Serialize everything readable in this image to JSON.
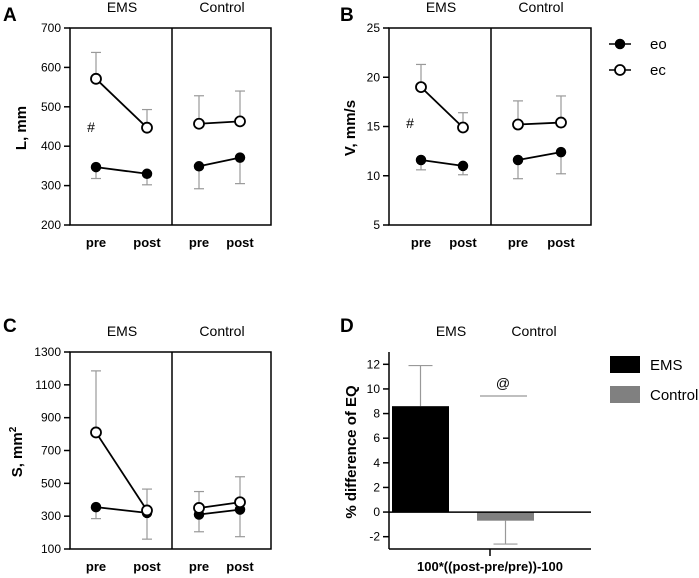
{
  "figure": {
    "colors": {
      "axis": "#000000",
      "error": "#999999",
      "open_fill": "#ffffff",
      "ems_bar": "#000000",
      "control_bar": "#808080"
    },
    "legend_ab": {
      "items": [
        {
          "label": "eo",
          "marker": "filled-circle"
        },
        {
          "label": "ec",
          "marker": "open-circle"
        }
      ]
    },
    "legend_d": {
      "items": [
        {
          "label": "EMS",
          "color": "#000000"
        },
        {
          "label": "Control",
          "color": "#808080"
        }
      ]
    }
  },
  "chart_data": [
    {
      "panel": "A",
      "type": "line",
      "ylabel": "L, mm",
      "ylim": [
        200,
        700
      ],
      "yticks": [
        200,
        300,
        400,
        500,
        600,
        700
      ],
      "groups": [
        "EMS",
        "Control"
      ],
      "categories": [
        "pre",
        "post"
      ],
      "series": [
        {
          "name": "eo",
          "marker": "filled",
          "EMS": {
            "values": [
              347,
              330
            ],
            "err_low": [
              318,
              302
            ],
            "err_high": [
              null,
              null
            ]
          },
          "Control": {
            "values": [
              349,
              371
            ],
            "err_low": [
              292,
              305
            ],
            "err_high": [
              null,
              null
            ]
          }
        },
        {
          "name": "ec",
          "marker": "open",
          "EMS": {
            "values": [
              571,
              447
            ],
            "err_low": [
              null,
              null
            ],
            "err_high": [
              638,
              493
            ]
          },
          "Control": {
            "values": [
              457,
              463
            ],
            "err_low": [
              null,
              null
            ],
            "err_high": [
              528,
              540
            ]
          }
        }
      ],
      "annotation": "#"
    },
    {
      "panel": "B",
      "type": "line",
      "ylabel": "V, mm/s",
      "ylim": [
        5,
        25
      ],
      "yticks": [
        5,
        10,
        15,
        20,
        25
      ],
      "groups": [
        "EMS",
        "Control"
      ],
      "categories": [
        "pre",
        "post"
      ],
      "series": [
        {
          "name": "eo",
          "marker": "filled",
          "EMS": {
            "values": [
              11.6,
              11.0
            ],
            "err_low": [
              10.6,
              10.1
            ],
            "err_high": [
              null,
              null
            ]
          },
          "Control": {
            "values": [
              11.6,
              12.4
            ],
            "err_low": [
              9.7,
              10.2
            ],
            "err_high": [
              null,
              null
            ]
          }
        },
        {
          "name": "ec",
          "marker": "open",
          "EMS": {
            "values": [
              19.0,
              14.9
            ],
            "err_low": [
              null,
              null
            ],
            "err_high": [
              21.3,
              16.4
            ]
          },
          "Control": {
            "values": [
              15.2,
              15.4
            ],
            "err_low": [
              null,
              null
            ],
            "err_high": [
              17.6,
              18.1
            ]
          }
        }
      ],
      "annotation": "#"
    },
    {
      "panel": "C",
      "type": "line",
      "ylabel": "S, mm",
      "ylabel_sup": "2",
      "ylim": [
        100,
        1300
      ],
      "yticks": [
        100,
        300,
        500,
        700,
        900,
        1100,
        1300
      ],
      "groups": [
        "EMS",
        "Control"
      ],
      "categories": [
        "pre",
        "post"
      ],
      "series": [
        {
          "name": "eo",
          "marker": "filled",
          "EMS": {
            "values": [
              355,
              320
            ],
            "err_low": [
              285,
              160
            ],
            "err_high": [
              null,
              null
            ]
          },
          "Control": {
            "values": [
              310,
              340
            ],
            "err_low": [
              205,
              175
            ],
            "err_high": [
              null,
              null
            ]
          }
        },
        {
          "name": "ec",
          "marker": "open",
          "EMS": {
            "values": [
              810,
              335
            ],
            "err_low": [
              null,
              null
            ],
            "err_high": [
              1185,
              465
            ]
          },
          "Control": {
            "values": [
              350,
              385
            ],
            "err_low": [
              null,
              null
            ],
            "err_high": [
              450,
              540
            ]
          }
        }
      ]
    },
    {
      "panel": "D",
      "type": "bar",
      "ylabel": "% difference of EQ",
      "xlabel": "100*((post-pre/pre))-100",
      "ylim": [
        -3,
        13
      ],
      "yticks": [
        -2,
        0,
        2,
        4,
        6,
        8,
        10,
        12
      ],
      "group_labels": [
        "EMS",
        "Control"
      ],
      "categories": [
        "EMS",
        "Control"
      ],
      "values": [
        8.6,
        -0.7
      ],
      "err_high": [
        11.9,
        null
      ],
      "err_low": [
        null,
        -2.6
      ],
      "annotation": "@"
    }
  ]
}
